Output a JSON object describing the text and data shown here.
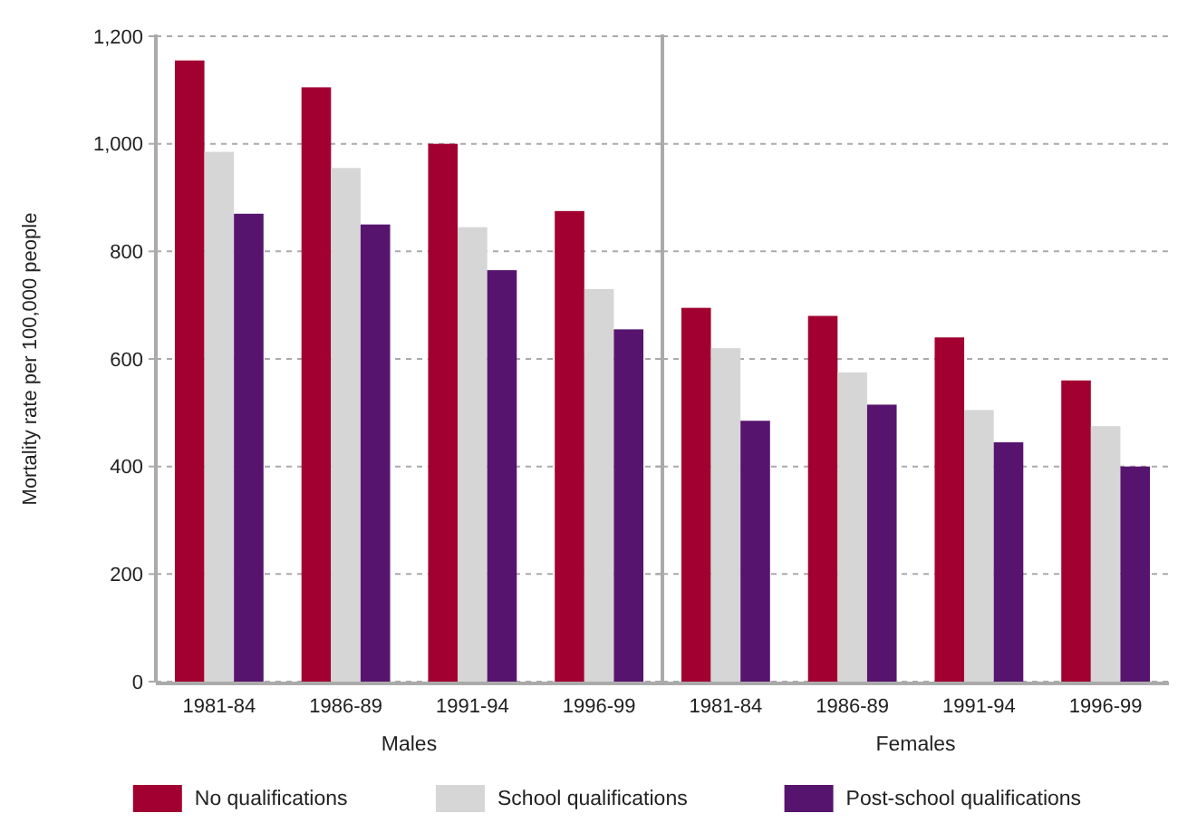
{
  "chart_data": [
    {
      "type": "bar",
      "xlabel": "Males",
      "ylabel": "Mortality rate per 100,000 people",
      "categories": [
        "1981-84",
        "1986-89",
        "1991-94",
        "1996-99"
      ],
      "ylim": [
        0,
        1200
      ],
      "yticks": [
        0,
        200,
        400,
        600,
        800,
        {
          "value": 1000,
          "label": "1,000"
        },
        {
          "value": 1200,
          "label": "1,200"
        }
      ],
      "grid": "y",
      "legend": "bottom",
      "series": [
        {
          "name": "No qualifications",
          "color": "#a10031",
          "values": [
            1155,
            1105,
            1000,
            875
          ]
        },
        {
          "name": "School qualifications",
          "color": "#d6d6d6",
          "values": [
            985,
            955,
            845,
            730
          ]
        },
        {
          "name": "Post-school qualifications",
          "color": "#57146e",
          "values": [
            870,
            850,
            765,
            655
          ]
        }
      ]
    },
    {
      "type": "bar",
      "xlabel": "Females",
      "categories": [
        "1981-84",
        "1986-89",
        "1991-94",
        "1996-99"
      ],
      "ylim": [
        0,
        1200
      ],
      "yticks": [
        0,
        200,
        400,
        600,
        800,
        1000,
        1200
      ],
      "grid": "y",
      "tick_labels": "x",
      "series": [
        {
          "color": "#a10031",
          "values": [
            695,
            680,
            640,
            560
          ]
        },
        {
          "color": "#d6d6d6",
          "values": [
            620,
            575,
            505,
            475
          ]
        },
        {
          "color": "#57146e",
          "values": [
            485,
            515,
            445,
            400
          ]
        }
      ]
    }
  ]
}
